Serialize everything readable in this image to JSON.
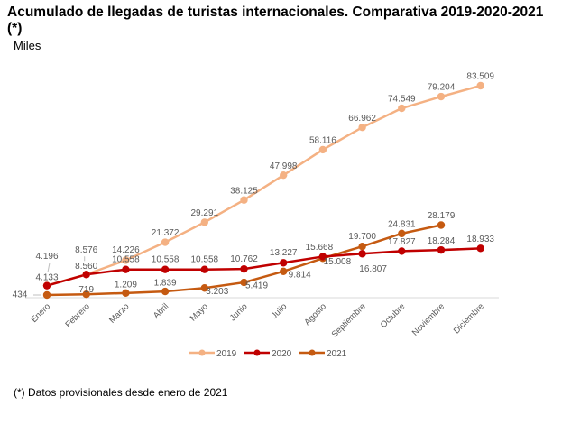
{
  "title": "Acumulado de llegadas de turistas internacionales. Comparativa 2019-2020-2021 (*)",
  "subtitle": "Miles",
  "footnote": "(*) Datos provisionales desde enero de 2021",
  "chart_data": {
    "type": "line",
    "title": "Acumulado de llegadas de turistas internacionales. Comparativa 2019-2020-2021 (*)",
    "ylabel": "Miles",
    "xlabel": "",
    "categories": [
      "Enero",
      "Febrero",
      "Marzo",
      "Abril",
      "Mayo",
      "Junio",
      "Julio",
      "Agosto",
      "Septiembre",
      "Octubre",
      "Noviembre",
      "Diciembre"
    ],
    "ylim": [
      0,
      83509
    ],
    "grid": false,
    "legend": "bottom",
    "series": [
      {
        "name": "2019",
        "color": "#F4B183",
        "values": [
          4196,
          8576,
          14226,
          21372,
          29291,
          38125,
          47998,
          58116,
          66962,
          74549,
          79204,
          83509
        ],
        "labels": [
          "4.196",
          "8.576",
          "14.226",
          "21.372",
          "29.291",
          "38.125",
          "47.998",
          "58.116",
          "66.962",
          "74.549",
          "79.204",
          "83.509"
        ]
      },
      {
        "name": "2020",
        "color": "#C00000",
        "values": [
          4133,
          8560,
          10558,
          10558,
          10558,
          10762,
          13227,
          15668,
          16807,
          17827,
          18284,
          18933
        ],
        "labels": [
          "4.133",
          "8.560",
          "10.558",
          "10.558",
          "10.558",
          "10.762",
          "13.227",
          "15.668",
          "16.807",
          "17.827",
          "18.284",
          "18.933"
        ]
      },
      {
        "name": "2021",
        "color": "#C55A11",
        "values": [
          434,
          719,
          1209,
          1839,
          3203,
          5419,
          9814,
          15008,
          19700,
          24831,
          28179,
          null
        ],
        "labels": [
          "434",
          "719",
          "1.209",
          "1.839",
          "3.203",
          "5.419",
          "9.814",
          "15.008",
          "19.700",
          "24.831",
          "28.179",
          null
        ]
      }
    ]
  }
}
